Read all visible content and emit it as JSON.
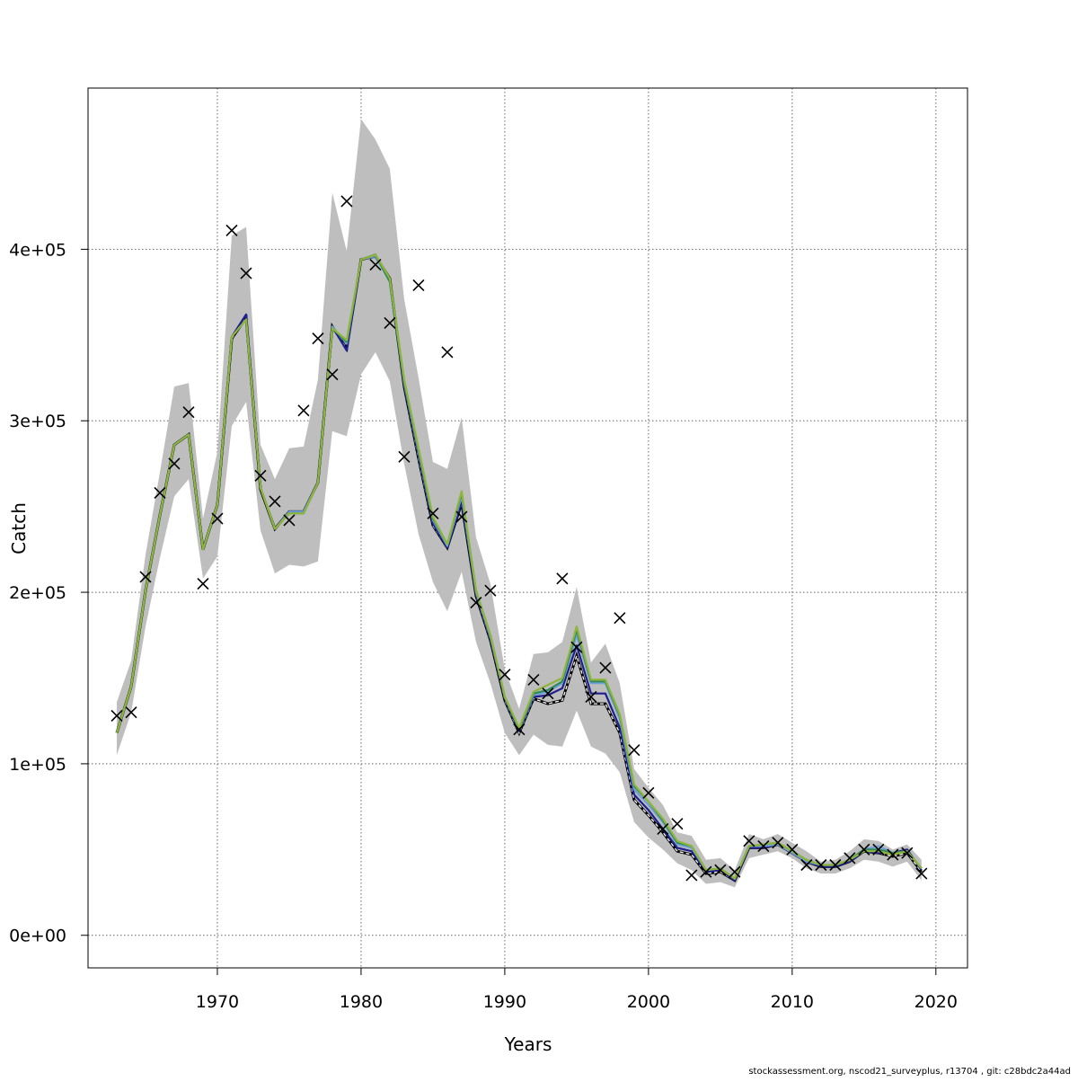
{
  "chart_data": {
    "type": "line",
    "title": "",
    "xlabel": "Years",
    "ylabel": "Catch",
    "xlim": [
      1961,
      2022.2
    ],
    "ylim": [
      -19000,
      494000
    ],
    "xticks": [
      1970,
      1980,
      1990,
      2000,
      2010,
      2020
    ],
    "xtick_labels": [
      "1970",
      "1980",
      "1990",
      "2000",
      "2010",
      "2020"
    ],
    "yticks": [
      0,
      100000,
      200000,
      300000,
      400000
    ],
    "ytick_labels": [
      "0e+00",
      "1e+05",
      "2e+05",
      "3e+05",
      "4e+05"
    ],
    "grid": true,
    "footer": "stockassessment.org, nscod21_surveyplus, r13704 , git: c28bdc2a44ad",
    "x": [
      1963,
      1964,
      1965,
      1966,
      1967,
      1968,
      1969,
      1970,
      1971,
      1972,
      1973,
      1974,
      1975,
      1976,
      1977,
      1978,
      1979,
      1980,
      1981,
      1982,
      1983,
      1984,
      1985,
      1986,
      1987,
      1988,
      1989,
      1990,
      1991,
      1992,
      1993,
      1994,
      1995,
      1996,
      1997,
      1998,
      1999,
      2000,
      2001,
      2002,
      2003,
      2004,
      2005,
      2006,
      2007,
      2008,
      2009,
      2010,
      2011,
      2012,
      2013,
      2014,
      2015,
      2016,
      2017,
      2018,
      2019
    ],
    "band": {
      "color": "#bebebe",
      "upper": [
        136000,
        160000,
        222000,
        270000,
        320000,
        322000,
        243000,
        282000,
        408000,
        413000,
        286000,
        266000,
        284000,
        285000,
        324000,
        433000,
        399000,
        476000,
        464000,
        447000,
        371000,
        325000,
        276000,
        272000,
        302000,
        232000,
        205000,
        155000,
        132000,
        164000,
        165000,
        171000,
        203000,
        159000,
        170000,
        147000,
        97000,
        86000,
        76000,
        60000,
        58000,
        44000,
        45000,
        38000,
        59000,
        56000,
        59000,
        54000,
        49000,
        43000,
        44000,
        49000,
        56000,
        55000,
        50000,
        53000,
        44000
      ],
      "lower": [
        105000,
        130000,
        180000,
        220000,
        256000,
        266000,
        208000,
        221000,
        297000,
        311000,
        236000,
        211000,
        216000,
        215000,
        218000,
        294000,
        291000,
        327000,
        340000,
        323000,
        275000,
        234000,
        206000,
        189000,
        212000,
        171000,
        147000,
        118000,
        105000,
        117000,
        111000,
        110000,
        131000,
        110000,
        106000,
        95000,
        66000,
        57000,
        50000,
        42000,
        38000,
        30000,
        31000,
        28000,
        45000,
        47000,
        49000,
        45000,
        39000,
        36000,
        36000,
        39000,
        44000,
        43000,
        40000,
        43000,
        32000
      ]
    },
    "series": [
      {
        "color": "#000000",
        "dashed": true,
        "values": [
          118000,
          145000,
          201000,
          245000,
          286000,
          292000,
          225000,
          251000,
          348000,
          360000,
          260000,
          237000,
          247000,
          247000,
          264000,
          355000,
          342000,
          394000,
          396000,
          383000,
          320000,
          278000,
          239000,
          226000,
          252000,
          198000,
          172000,
          137000,
          118000,
          138000,
          135000,
          137000,
          163000,
          135000,
          135000,
          118000,
          79000,
          70000,
          60000,
          49000,
          47000,
          36000,
          37000,
          32000,
          51000,
          51000,
          53000,
          48000,
          43000,
          40000,
          40000,
          43000,
          49000,
          48000,
          46000,
          48000,
          37000
        ]
      },
      {
        "color": "#1f1f8f",
        "dashed": false,
        "values": [
          118000,
          145000,
          201000,
          245000,
          286000,
          292000,
          225000,
          251000,
          349000,
          362000,
          261000,
          237000,
          247000,
          247000,
          264000,
          355000,
          341000,
          394000,
          397000,
          382000,
          321000,
          280000,
          240000,
          226000,
          253000,
          199000,
          173000,
          138000,
          119000,
          139000,
          140000,
          144000,
          169000,
          141000,
          141000,
          121000,
          82000,
          73000,
          62000,
          51000,
          49000,
          37000,
          38000,
          32000,
          51000,
          51000,
          53000,
          48000,
          43000,
          40000,
          40000,
          43000,
          49000,
          48000,
          48000,
          50000,
          38000
        ]
      },
      {
        "color": "#6fa0d8",
        "dashed": false,
        "values": [
          118000,
          145000,
          201000,
          245000,
          286000,
          292000,
          225000,
          251000,
          349000,
          359000,
          261000,
          237000,
          247000,
          247000,
          264000,
          355000,
          345000,
          394000,
          396000,
          381000,
          322000,
          282000,
          242000,
          227000,
          256000,
          200000,
          174000,
          139000,
          120000,
          140000,
          142000,
          147000,
          175000,
          147000,
          147000,
          126000,
          85000,
          76000,
          66000,
          53000,
          51000,
          38000,
          39000,
          33000,
          52000,
          52000,
          53000,
          48000,
          43000,
          41000,
          41000,
          44000,
          50000,
          52000,
          48000,
          49000,
          39000
        ]
      },
      {
        "color": "#2e8b57",
        "dashed": false,
        "values": [
          118000,
          145000,
          201000,
          245000,
          286000,
          292000,
          225000,
          251000,
          349000,
          359000,
          261000,
          237000,
          246000,
          246000,
          264000,
          354000,
          346000,
          394000,
          397000,
          381000,
          323000,
          283000,
          243000,
          228000,
          258000,
          201000,
          175000,
          139000,
          120000,
          141000,
          143000,
          148000,
          178000,
          148000,
          148000,
          128000,
          87000,
          78000,
          67000,
          54000,
          52000,
          38000,
          39000,
          33000,
          52000,
          53000,
          54000,
          49000,
          44000,
          41000,
          41000,
          44000,
          50000,
          50000,
          48000,
          49000,
          39000
        ]
      },
      {
        "color": "#8fb43a",
        "dashed": false,
        "values": [
          118000,
          145000,
          201000,
          245000,
          286000,
          292000,
          225000,
          251000,
          349000,
          359000,
          261000,
          237000,
          246000,
          246000,
          264000,
          354000,
          347000,
          394000,
          397000,
          383000,
          324000,
          284000,
          244000,
          228000,
          259000,
          201000,
          175000,
          139000,
          121000,
          142000,
          146000,
          150000,
          180000,
          149000,
          149000,
          129000,
          88000,
          78000,
          68000,
          55000,
          52000,
          38000,
          39000,
          33000,
          52000,
          53000,
          54000,
          49000,
          44000,
          41000,
          41000,
          44000,
          49000,
          49000,
          47000,
          49000,
          39000
        ]
      }
    ],
    "observed": {
      "marker": "x",
      "x": [
        1963,
        1964,
        1965,
        1966,
        1967,
        1968,
        1969,
        1970,
        1971,
        1972,
        1973,
        1974,
        1975,
        1976,
        1977,
        1978,
        1979,
        1981,
        1982,
        1983,
        1984,
        1985,
        1986,
        1987,
        1988,
        1989,
        1990,
        1991,
        1992,
        1993,
        1994,
        1995,
        1996,
        1997,
        1998,
        1999,
        2000,
        2001,
        2002,
        2003,
        2004,
        2005,
        2006,
        2007,
        2008,
        2009,
        2010,
        2011,
        2012,
        2013,
        2014,
        2015,
        2016,
        2017,
        2018,
        2019
      ],
      "y": [
        128000,
        130000,
        209000,
        258000,
        275000,
        305000,
        205000,
        243000,
        411000,
        386000,
        268000,
        253000,
        242000,
        306000,
        348000,
        327000,
        428000,
        391000,
        357000,
        279000,
        379000,
        246000,
        340000,
        244000,
        194000,
        201000,
        152000,
        120000,
        149000,
        141000,
        208000,
        168000,
        139000,
        156000,
        185000,
        108000,
        83000,
        62000,
        65000,
        35000,
        37000,
        38000,
        37000,
        55000,
        52000,
        54000,
        50000,
        41000,
        41000,
        41000,
        45000,
        50000,
        50000,
        47000,
        48000,
        36000
      ]
    }
  }
}
